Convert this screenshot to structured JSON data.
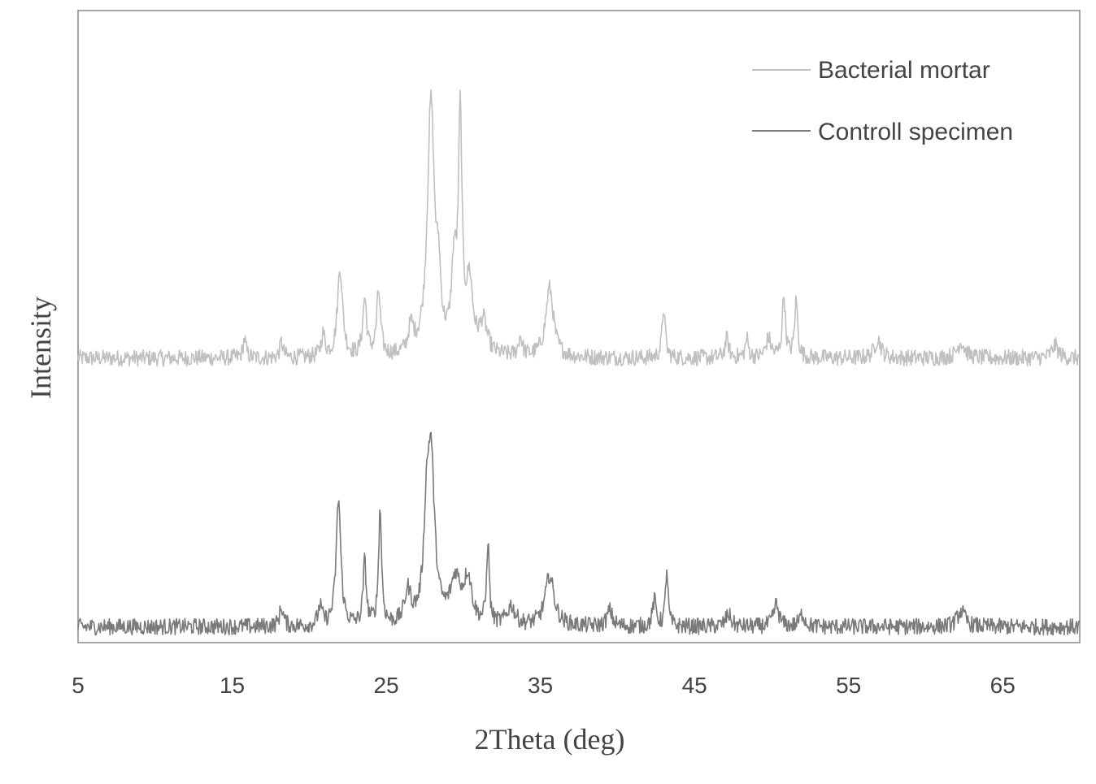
{
  "chart_data": {
    "type": "line",
    "xlabel": "2Theta (deg)",
    "ylabel": "Intensity",
    "xlim": [
      5,
      70
    ],
    "ylim": [
      0,
      100
    ],
    "x_ticks": [
      "5",
      "15",
      "25",
      "35",
      "45",
      "55",
      "65"
    ],
    "y_ticks_shown": false,
    "grid": false,
    "legend_position": "top-right",
    "series": [
      {
        "name": "Bacterial mortar",
        "color": "#c0c0c0",
        "baseline": 45,
        "noise": 1.3,
        "peaks": [
          {
            "x": 15.8,
            "height": 3,
            "width": 0.12
          },
          {
            "x": 18.2,
            "height": 2.5,
            "width": 0.12
          },
          {
            "x": 20.9,
            "height": 3.5,
            "width": 0.15
          },
          {
            "x": 22.0,
            "height": 14,
            "width": 0.2
          },
          {
            "x": 23.6,
            "height": 9,
            "width": 0.15
          },
          {
            "x": 24.5,
            "height": 10,
            "width": 0.15
          },
          {
            "x": 26.6,
            "height": 4,
            "width": 0.2
          },
          {
            "x": 27.9,
            "height": 40,
            "width": 0.28
          },
          {
            "x": 28.4,
            "height": 9,
            "width": 0.15
          },
          {
            "x": 29.4,
            "height": 13,
            "width": 0.2
          },
          {
            "x": 29.8,
            "height": 36,
            "width": 0.14
          },
          {
            "x": 30.4,
            "height": 11,
            "width": 0.25
          },
          {
            "x": 31.3,
            "height": 5,
            "width": 0.3
          },
          {
            "x": 33.7,
            "height": 3,
            "width": 0.15
          },
          {
            "x": 35.6,
            "height": 11,
            "width": 0.3
          },
          {
            "x": 43.0,
            "height": 8,
            "width": 0.12
          },
          {
            "x": 47.1,
            "height": 3,
            "width": 0.15
          },
          {
            "x": 48.4,
            "height": 3,
            "width": 0.12
          },
          {
            "x": 49.8,
            "height": 3,
            "width": 0.2
          },
          {
            "x": 50.8,
            "height": 10,
            "width": 0.12
          },
          {
            "x": 51.6,
            "height": 9,
            "width": 0.12
          },
          {
            "x": 56.9,
            "height": 3,
            "width": 0.25
          },
          {
            "x": 62.3,
            "height": 2.5,
            "width": 0.3
          },
          {
            "x": 68.4,
            "height": 2,
            "width": 0.25
          }
        ]
      },
      {
        "name": "Controll specimen",
        "color": "#7a7a7a",
        "baseline": 2.5,
        "noise": 1.3,
        "peaks": [
          {
            "x": 18.2,
            "height": 3,
            "width": 0.15
          },
          {
            "x": 20.7,
            "height": 3,
            "width": 0.15
          },
          {
            "x": 21.9,
            "height": 20,
            "width": 0.18
          },
          {
            "x": 23.6,
            "height": 10,
            "width": 0.12
          },
          {
            "x": 24.6,
            "height": 18,
            "width": 0.12
          },
          {
            "x": 26.4,
            "height": 5,
            "width": 0.25
          },
          {
            "x": 27.6,
            "height": 12,
            "width": 0.2
          },
          {
            "x": 27.9,
            "height": 26,
            "width": 0.28
          },
          {
            "x": 29.5,
            "height": 7,
            "width": 0.4
          },
          {
            "x": 30.3,
            "height": 7,
            "width": 0.3
          },
          {
            "x": 31.6,
            "height": 13,
            "width": 0.1
          },
          {
            "x": 33.1,
            "height": 3,
            "width": 0.3
          },
          {
            "x": 35.6,
            "height": 8,
            "width": 0.35
          },
          {
            "x": 39.5,
            "height": 2.5,
            "width": 0.2
          },
          {
            "x": 42.4,
            "height": 4,
            "width": 0.15
          },
          {
            "x": 43.2,
            "height": 9,
            "width": 0.1
          },
          {
            "x": 47.2,
            "height": 2,
            "width": 0.2
          },
          {
            "x": 50.3,
            "height": 3.5,
            "width": 0.2
          },
          {
            "x": 52.0,
            "height": 2,
            "width": 0.2
          },
          {
            "x": 62.3,
            "height": 2.5,
            "width": 0.3
          }
        ]
      }
    ]
  }
}
